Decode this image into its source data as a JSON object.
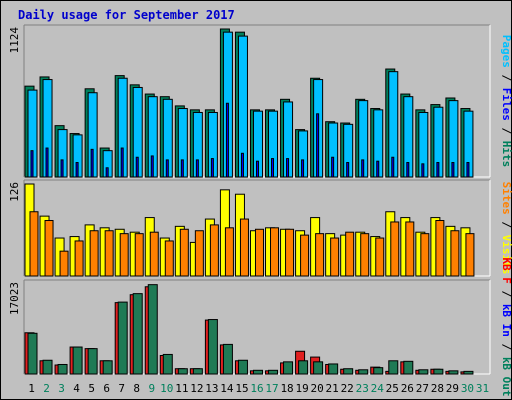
{
  "chart_data": {
    "type": "bar",
    "title": "Daily usage for September 2017",
    "categories": [
      "1",
      "2",
      "3",
      "4",
      "5",
      "6",
      "7",
      "8",
      "9",
      "10",
      "11",
      "12",
      "13",
      "14",
      "15",
      "16",
      "17",
      "18",
      "19",
      "20",
      "21",
      "22",
      "23",
      "24",
      "25",
      "26",
      "27",
      "28",
      "29",
      "30",
      "31"
    ],
    "weekend_days": [
      "2",
      "3",
      "9",
      "10",
      "16",
      "17",
      "23",
      "24",
      "30",
      "31"
    ],
    "colors": {
      "hits": "#00805c",
      "files": "#00c0ff",
      "pages": "#0000ff",
      "visits": "#ffff00",
      "sites": "#ff8000",
      "kbin": "#0000ff",
      "kbout": "#00805c",
      "kbf": "#ff0000",
      "green_bar": "#1f7a55",
      "red_bar": "#e02020",
      "weekday_label": "#000000",
      "weekend_label": "#00805c",
      "title": "#0000cc",
      "plot_bg": "#c0c0c0"
    },
    "panels": [
      {
        "name": "usage",
        "max_label": "1124",
        "ylim": [
          0,
          1124
        ],
        "side_labels": [
          {
            "text": "Pages",
            "color": "#00c0ff"
          },
          {
            "text": " / ",
            "color": "#000000"
          },
          {
            "text": "Files",
            "color": "#0000ff"
          },
          {
            "text": " / ",
            "color": "#000000"
          },
          {
            "text": "Hits",
            "color": "#00805c"
          }
        ],
        "series": [
          {
            "name": "Hits",
            "values": [
              690,
              760,
              390,
              330,
              670,
              220,
              770,
              700,
              630,
              610,
              540,
              510,
              510,
              1124,
              1100,
              510,
              510,
              590,
              360,
              750,
              420,
              410,
              590,
              520,
              820,
              630,
              510,
              550,
              600,
              520,
              0
            ]
          },
          {
            "name": "Files",
            "values": [
              660,
              740,
              360,
              320,
              640,
              200,
              750,
              680,
              610,
              590,
              520,
              490,
              490,
              1100,
              1070,
              500,
              500,
              570,
              350,
              740,
              410,
              400,
              580,
              510,
              800,
              610,
              490,
              530,
              580,
              500,
              0
            ]
          },
          {
            "name": "Pages",
            "values": [
              200,
              220,
              130,
              110,
              210,
              70,
              220,
              150,
              160,
              130,
              130,
              130,
              140,
              560,
              180,
              120,
              140,
              140,
              130,
              480,
              150,
              110,
              130,
              120,
              150,
              110,
              100,
              110,
              110,
              110,
              0
            ]
          }
        ]
      },
      {
        "name": "visits",
        "max_label": "126",
        "ylim": [
          0,
          126
        ],
        "side_labels": [
          {
            "text": "Sites",
            "color": "#ff8000"
          },
          {
            "text": " / ",
            "color": "#000000"
          },
          {
            "text": "Visits",
            "color": "#ffff00"
          }
        ],
        "series": [
          {
            "name": "Visits",
            "values": [
              126,
              82,
              52,
              54,
              70,
              66,
              64,
              60,
              80,
              52,
              68,
              46,
              78,
              118,
              112,
              62,
              66,
              64,
              62,
              80,
              58,
              56,
              60,
              54,
              88,
              80,
              60,
              80,
              68,
              66,
              0
            ]
          },
          {
            "name": "Sites",
            "values": [
              88,
              76,
              34,
              48,
              62,
              62,
              58,
              58,
              60,
              48,
              64,
              62,
              70,
              66,
              78,
              64,
              66,
              64,
              56,
              58,
              52,
              60,
              58,
              52,
              74,
              74,
              58,
              76,
              62,
              58,
              0
            ]
          }
        ]
      },
      {
        "name": "kbytes",
        "max_label": "17023",
        "ylim": [
          0,
          17023
        ],
        "side_labels": [
          {
            "text": "KB F",
            "color": "#ff0000"
          },
          {
            "text": " / ",
            "color": "#000000"
          },
          {
            "text": "kB In",
            "color": "#0000ff"
          },
          {
            "text": " / ",
            "color": "#000000"
          },
          {
            "text": "kB Out",
            "color": "#00805c"
          }
        ],
        "series": [
          {
            "name": "KB F",
            "values": [
              7800,
              2500,
              1700,
              5100,
              4800,
              2500,
              13500,
              15000,
              16500,
              3500,
              1000,
              1000,
              10200,
              5500,
              2500,
              600,
              600,
              2100,
              4300,
              3200,
              1800,
              900,
              700,
              1300,
              500,
              2300,
              700,
              900,
              500,
              400,
              0
            ]
          },
          {
            "name": "kB Out",
            "values": [
              7700,
              2600,
              1800,
              5100,
              4800,
              2500,
              13600,
              15200,
              16900,
              3700,
              1000,
              1000,
              10300,
              5600,
              2600,
              700,
              700,
              2300,
              2500,
              2300,
              1900,
              1000,
              800,
              1200,
              2500,
              2400,
              800,
              900,
              600,
              500,
              0
            ]
          }
        ]
      }
    ]
  }
}
